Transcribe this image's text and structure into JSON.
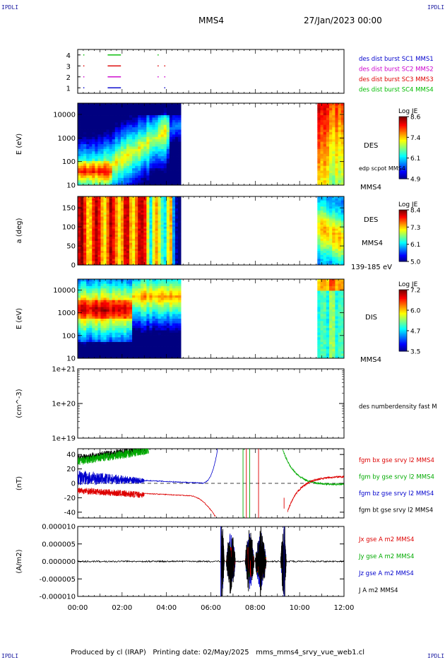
{
  "header": {
    "left_tag": "IPDLI",
    "right_tag": "IPDLI",
    "spacecraft": "MMS4",
    "date_time": "27/Jan/2023 00:00"
  },
  "footer": {
    "produced_by": "Produced by cl (IRAP)",
    "printing_date": "Printing date: 02/May/2025",
    "file": "mms_mms4_srvy_vue_web1.cl",
    "left_tag": "IPDLI",
    "right_tag": "IPDLI"
  },
  "x_axis": {
    "ticks": [
      "00:00",
      "02:00",
      "04:00",
      "06:00",
      "08:00",
      "10:00",
      "12:00"
    ],
    "range_hours": [
      0,
      12
    ]
  },
  "chart_data": [
    {
      "id": "burst",
      "type": "scatter",
      "y_ticks": [
        "1",
        "2",
        "3",
        "4"
      ],
      "ylim": [
        0.5,
        4.5
      ],
      "series": [
        {
          "name": "des dist burst SC1 MMS1",
          "color": "#0000cc",
          "y": 1,
          "x": [
            0.25,
            1.35,
            1.9,
            3.9
          ]
        },
        {
          "name": "des dist burst SC2 MMS2",
          "color": "#cc00cc",
          "y": 2,
          "x": [
            0.25,
            1.35,
            1.9,
            3.6,
            3.9
          ]
        },
        {
          "name": "des dist burst SC3 MMS3",
          "color": "#dd0000",
          "y": 3,
          "x": [
            0.25,
            1.35,
            1.9,
            3.6,
            3.9
          ]
        },
        {
          "name": "des dist burst SC4 MMS4",
          "color": "#00bb00",
          "y": 4,
          "x": [
            0.25,
            1.35,
            1.9,
            3.6
          ]
        }
      ]
    },
    {
      "id": "des-energy",
      "type": "heatmap",
      "ylabel": "E (eV)",
      "y_scale": "log",
      "y_ticks": [
        "10",
        "100",
        "1000",
        "10000"
      ],
      "ylim": [
        10,
        30000
      ],
      "label": "DES",
      "sublabel": "edp scpot MMS4",
      "corner_label": "MMS4",
      "colorbar": {
        "title": "Log JE",
        "ticks": [
          "8.6",
          "7.4",
          "6.1",
          "4.9"
        ],
        "range": [
          4.9,
          8.6
        ]
      },
      "data_intervals_hours": [
        [
          0,
          4.65
        ],
        [
          10.8,
          12
        ]
      ]
    },
    {
      "id": "des-pitch",
      "type": "heatmap",
      "ylabel": "a (deg)",
      "y_ticks": [
        "0",
        "50",
        "100",
        "150"
      ],
      "ylim": [
        0,
        180
      ],
      "label": "DES",
      "sublabel": "MMS4",
      "corner_label": "139-185 eV",
      "colorbar": {
        "title": "Log JE",
        "ticks": [
          "8.4",
          "7.3",
          "6.1",
          "5.0"
        ],
        "range": [
          5.0,
          8.4
        ]
      },
      "data_intervals_hours": [
        [
          0,
          4.65
        ],
        [
          10.8,
          12
        ]
      ]
    },
    {
      "id": "dis-energy",
      "type": "heatmap",
      "ylabel": "E (eV)",
      "y_scale": "log",
      "y_ticks": [
        "10",
        "100",
        "1000",
        "10000"
      ],
      "ylim": [
        10,
        30000
      ],
      "label": "DIS",
      "corner_label": "MMS4",
      "colorbar": {
        "title": "Log JE",
        "ticks": [
          "7.2",
          "6.0",
          "4.7",
          "3.5"
        ],
        "range": [
          3.5,
          7.2
        ]
      },
      "data_intervals_hours": [
        [
          0,
          4.65
        ],
        [
          10.8,
          12
        ]
      ]
    },
    {
      "id": "density",
      "type": "line",
      "ylabel": "(cm^-3)",
      "y_scale": "log",
      "y_ticks": [
        "1e+19",
        "1e+20",
        "1e+21"
      ],
      "legend": [
        "des numberdensity fast M"
      ]
    },
    {
      "id": "fgm",
      "type": "line",
      "ylabel": "(nT)",
      "y_ticks": [
        "-40",
        "-20",
        "0",
        "20",
        "40"
      ],
      "ylim": [
        -48,
        48
      ],
      "series": [
        {
          "name": "fgm bx gse srvy l2 MMS4",
          "color": "#dd0000"
        },
        {
          "name": "fgm by gse srvy l2 MMS4",
          "color": "#00bb00"
        },
        {
          "name": "fgm bz gse srvy l2 MMS4",
          "color": "#0000cc"
        },
        {
          "name": "fgm bt gse srvy l2 MMS4",
          "color": "#000000"
        }
      ]
    },
    {
      "id": "current",
      "type": "line",
      "ylabel": "(A/m2)",
      "y_ticks": [
        "-0.000010",
        "-0.000005",
        "0.000000",
        "0.000005",
        "0.000010"
      ],
      "ylim": [
        -1e-05,
        1e-05
      ],
      "series": [
        {
          "name": "Jx gse A m2 MMS4",
          "color": "#dd0000"
        },
        {
          "name": "Jy gse A m2 MMS4",
          "color": "#00bb00"
        },
        {
          "name": "Jz gse A m2 MMS4",
          "color": "#0000cc"
        },
        {
          "name": "J A m2 MMS4",
          "color": "#000000"
        }
      ]
    }
  ]
}
